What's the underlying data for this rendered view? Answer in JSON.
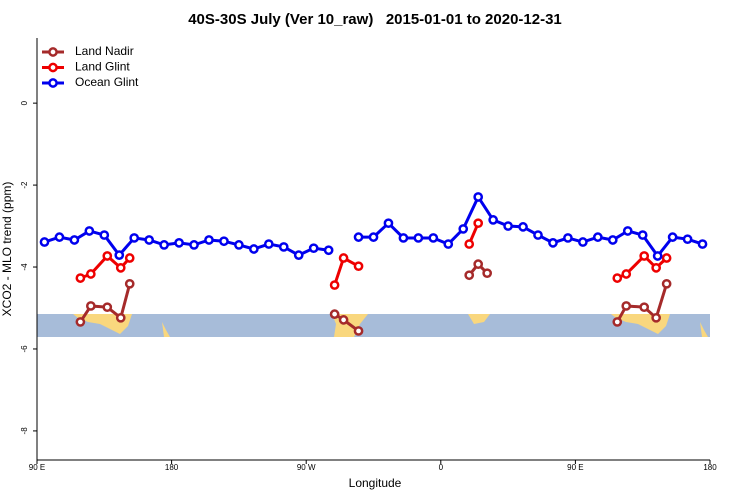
{
  "chart_data": {
    "type": "line",
    "title": "40S-30S July (Ver 10_raw)   2015-01-01 to 2020-12-31",
    "x_label": "Longitude",
    "y_label": "XCO2 - MLO trend (ppm)",
    "xlim": [
      90,
      540
    ],
    "xticks": [
      {
        "value": 90,
        "label": "90 E"
      },
      180,
      {
        "value": 270,
        "label": "90 W"
      },
      {
        "value": 360,
        "label": "0"
      },
      {
        "value": 450,
        "label": "90 E"
      },
      {
        "value": 540,
        "label": "180"
      }
    ],
    "ylim": [
      -8.71,
      1.59
    ],
    "yticks": [
      0,
      -2,
      -4,
      -6,
      -8
    ],
    "legend": "top-left",
    "series": [
      {
        "name": "Land Nadir",
        "color": "#a52a2a",
        "x": [
          119,
          126,
          137,
          146,
          152,
          null,
          289,
          295,
          305,
          null,
          379,
          385,
          391,
          null,
          478,
          484,
          496,
          504,
          511
        ],
        "values": [
          -5.34,
          -4.95,
          -4.98,
          -5.24,
          -4.41,
          null,
          -5.15,
          -5.29,
          -5.56,
          null,
          -4.2,
          -3.93,
          -4.15,
          null,
          -5.34,
          -4.95,
          -4.98,
          -5.24,
          -4.41
        ]
      },
      {
        "name": "Land Glint",
        "color": "#ee0000",
        "x": [
          119,
          126,
          137,
          146,
          152,
          null,
          289,
          295,
          305,
          null,
          379,
          385,
          null,
          478,
          484,
          496,
          504,
          511
        ],
        "values": [
          -4.27,
          -4.17,
          -3.73,
          -4.02,
          -3.78,
          null,
          -4.44,
          -3.78,
          -3.98,
          null,
          -3.44,
          -2.93,
          null,
          -4.27,
          -4.17,
          -3.73,
          -4.02,
          -3.78
        ]
      },
      {
        "name": "Ocean Glint",
        "color": "#0000ee",
        "x": [
          95,
          105,
          115,
          125,
          135,
          145,
          155,
          165,
          175,
          185,
          195,
          205,
          215,
          225,
          235,
          245,
          255,
          265,
          275,
          285,
          295,
          305,
          315,
          325,
          335,
          345,
          355,
          365,
          375,
          385,
          395,
          405,
          415,
          425,
          435,
          445,
          455,
          465,
          475,
          485,
          495,
          505,
          515,
          525,
          535
        ],
        "values": [
          -3.39,
          -3.27,
          -3.34,
          -3.12,
          -3.22,
          -3.71,
          -3.29,
          -3.34,
          -3.46,
          -3.41,
          -3.46,
          -3.34,
          -3.37,
          -3.46,
          -3.56,
          -3.44,
          -3.51,
          -3.71,
          -3.54,
          -3.59,
          null,
          -3.27,
          -3.27,
          -2.93,
          -3.29,
          -3.29,
          -3.29,
          -3.44,
          -3.07,
          -2.29,
          -2.85,
          -3.0,
          -3.02,
          -3.22,
          -3.41,
          -3.29,
          -3.39,
          -3.27,
          -3.34,
          -3.12,
          -3.22,
          -3.73,
          -3.27,
          -3.32,
          -3.44
        ]
      }
    ]
  }
}
